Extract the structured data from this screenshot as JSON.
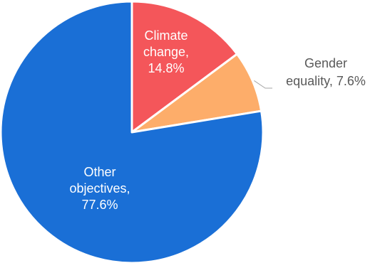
{
  "chart_data": {
    "type": "pie",
    "slices": [
      {
        "key": "climate",
        "label_lines": [
          "Climate",
          "change,",
          "14.8%"
        ],
        "value": 14.8,
        "color": "#f4565a",
        "label_color": "#ffffff"
      },
      {
        "key": "gender",
        "label_lines": [
          "Gender",
          "equality, 7.6%"
        ],
        "value": 7.6,
        "color": "#fdad6a",
        "label_color": "#595959"
      },
      {
        "key": "other",
        "label_lines": [
          "Other",
          "objectives,",
          "77.6%"
        ],
        "value": 77.6,
        "color": "#1a6fd6",
        "label_color": "#ffffff"
      }
    ],
    "start_angle": "12 o'clock",
    "direction": "clockwise",
    "slice_border_color": "#ffffff",
    "leader_line_color": "#a6a6a6"
  }
}
